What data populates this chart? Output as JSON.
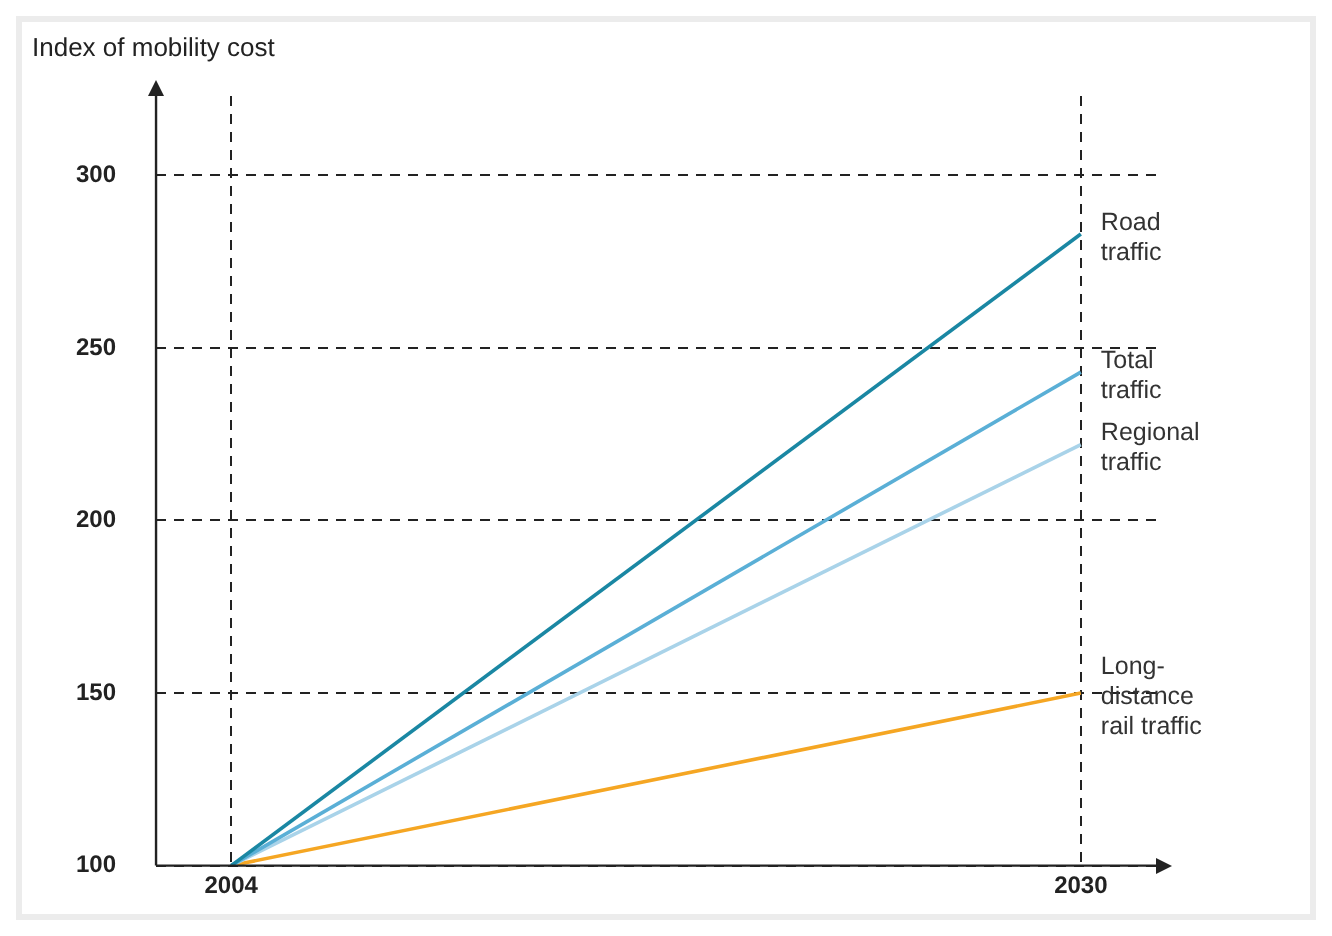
{
  "chart_data": {
    "type": "line",
    "ylabel": "Index of mobility cost",
    "x": [
      2004,
      2030
    ],
    "series": [
      {
        "name": "Road traffic",
        "color": "#1a87a3",
        "values": [
          100,
          283
        ]
      },
      {
        "name": "Total traffic",
        "color": "#5aafd6",
        "values": [
          100,
          243
        ]
      },
      {
        "name": "Regional traffic",
        "color": "#a9d3e9",
        "values": [
          100,
          222
        ]
      },
      {
        "name": "Long-distance rail traffic",
        "color": "#f5a623",
        "values": [
          100,
          150
        ]
      }
    ],
    "xlim": [
      2001.7,
      2032.3
    ],
    "xticks": [
      2004,
      2030
    ],
    "ylim": [
      100,
      323
    ],
    "yticks": [
      100,
      150,
      200,
      250,
      300
    ],
    "grid": true,
    "legend": false,
    "marker": "none",
    "line_style": "solid"
  }
}
